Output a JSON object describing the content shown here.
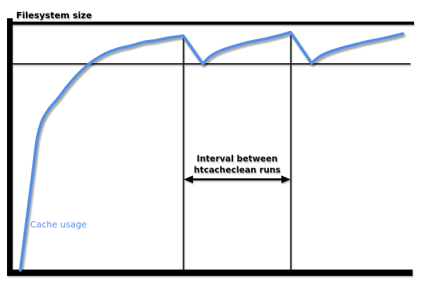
{
  "labels": {
    "filesystem_size": "Filesystem size",
    "cache_usage": "Cache usage",
    "interval_label_line1": "Interval between",
    "interval_label_line2": "htcacheclean runs"
  },
  "colors": {
    "curve": "#578FE6",
    "axis": "#000000",
    "guide_line": "#1c1c1c",
    "background": "#ffffff"
  },
  "chart_data": {
    "type": "line",
    "title": "",
    "xlabel": "",
    "ylabel": "",
    "axes_numeric": false,
    "coordinate_space": "screen pixels, y increases downward, canvas 600x406",
    "series": [
      {
        "name": "Cache usage",
        "color": "#578FE6",
        "stroke_width": 4.2,
        "segments": [
          {
            "shape": "smooth",
            "points": [
              [
                29,
                385
              ],
              [
                36,
                330
              ],
              [
                42,
                283
              ],
              [
                48,
                236
              ],
              [
                53,
                197
              ],
              [
                60,
                172
              ],
              [
                70,
                155
              ],
              [
                82,
                141
              ],
              [
                95,
                124
              ],
              [
                107,
                110
              ],
              [
                118,
                99
              ],
              [
                128,
                90
              ],
              [
                140,
                82
              ],
              [
                153,
                75
              ],
              [
                170,
                69
              ],
              [
                187,
                65
              ],
              [
                205,
                60
              ],
              [
                220,
                58
              ],
              [
                240,
                54
              ],
              [
                261,
                51
              ]
            ]
          },
          {
            "shape": "line",
            "points": [
              [
                261,
                51
              ],
              [
                289,
                91
              ]
            ]
          },
          {
            "shape": "smooth",
            "points": [
              [
                289,
                91
              ],
              [
                300,
                80
              ],
              [
                315,
                72
              ],
              [
                333,
                66
              ],
              [
                355,
                60
              ],
              [
                380,
                55
              ],
              [
                400,
                50
              ],
              [
                414,
                46
              ]
            ]
          },
          {
            "shape": "line",
            "points": [
              [
                414,
                46
              ],
              [
                444,
                90
              ]
            ]
          },
          {
            "shape": "smooth",
            "points": [
              [
                444,
                90
              ],
              [
                455,
                81
              ],
              [
                467,
                75
              ],
              [
                485,
                69
              ],
              [
                500,
                65
              ],
              [
                520,
                60
              ],
              [
                540,
                56
              ],
              [
                558,
                52
              ],
              [
                574,
                48
              ]
            ]
          }
        ]
      }
    ],
    "reference_lines": [
      {
        "name": "filesystem-size-line",
        "meaning": "Filesystem size",
        "orientation": "horizontal",
        "y": 33,
        "x1": 11,
        "x2": 590,
        "thickness": 4.5
      },
      {
        "name": "cache-limit-line",
        "meaning": "cache size limit that htcacheclean trims back to",
        "orientation": "horizontal",
        "y": 91,
        "x1": 18,
        "x2": 585,
        "thickness": 2
      }
    ],
    "event_lines": [
      {
        "name": "htcacheclean-run-line-1",
        "meaning": "htcacheclean run 1",
        "x": 261.5,
        "y1": 51,
        "y2": 384,
        "thickness": 2
      },
      {
        "name": "htcacheclean-run-line-2",
        "meaning": "htcacheclean run 2",
        "x": 414.5,
        "y1": 46,
        "y2": 384,
        "thickness": 2
      }
    ],
    "annotations": [
      {
        "name": "interval-arrow",
        "type": "double-headed-arrow",
        "label": "Interval between htcacheclean runs",
        "y": 255.5,
        "x1": 262,
        "x2": 414
      }
    ],
    "axes_frame": {
      "y_axis": {
        "x": 10,
        "width": 8,
        "y1": 26,
        "y2": 393
      },
      "x_axis": {
        "y": 384,
        "height": 9,
        "x1": 10,
        "x2": 588
      }
    },
    "legend_position": "none",
    "grid": false
  }
}
